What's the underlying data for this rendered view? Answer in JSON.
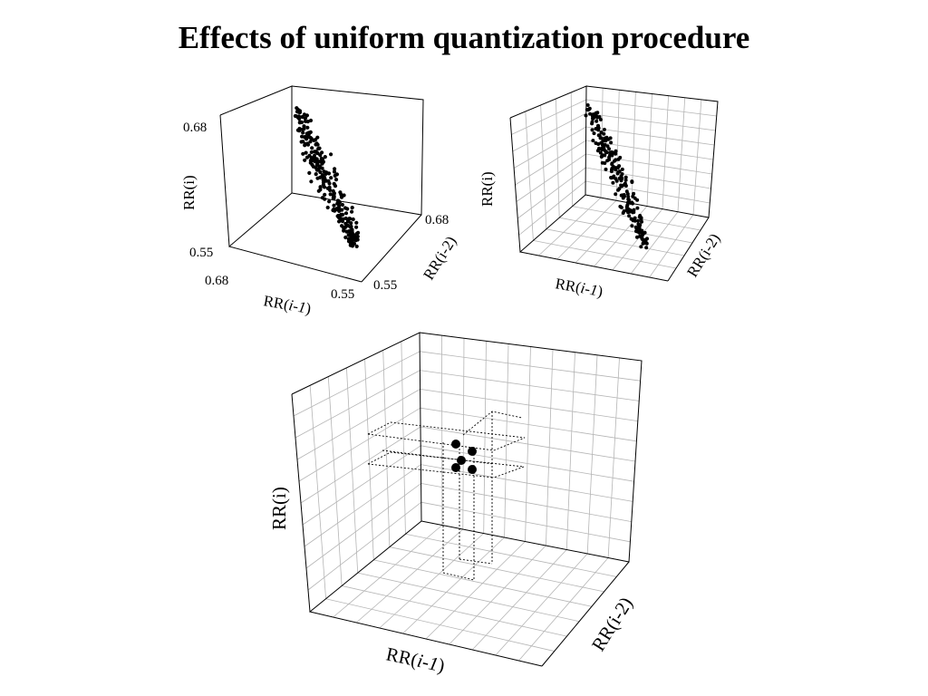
{
  "title": "Effects of uniform quantization procedure",
  "colors": {
    "ink": "#000000",
    "grid": "#b5b5b5",
    "background": "#ffffff"
  },
  "plot_a": {
    "y_axis_label": "RR(i)",
    "x_axis_label_prefix": "RR(",
    "x_axis_label_var": "i-1",
    "x_axis_label_suffix": ")",
    "z_axis_label": "RR(i-2)",
    "y_tick_top": "0.68",
    "y_tick_bottom": "0.55",
    "x_tick_left": "0.68",
    "x_tick_right": "0.55",
    "z_tick_top": "0.68",
    "z_tick_bottom": "0.55",
    "grid": false
  },
  "plot_b": {
    "y_axis_label": "RR(i)",
    "x_axis_label_prefix": "RR(",
    "x_axis_label_var": "i-1",
    "x_axis_label_suffix": ")",
    "z_axis_label": "RR(i-2)",
    "grid": true
  },
  "plot_c": {
    "y_axis_label": "RR(i)",
    "x_axis_label_prefix": "RR(",
    "x_axis_label_var": "i-1",
    "x_axis_label_suffix": ")",
    "z_axis_label": "RR(i-2)",
    "grid": true,
    "quantized_points": 5
  }
}
